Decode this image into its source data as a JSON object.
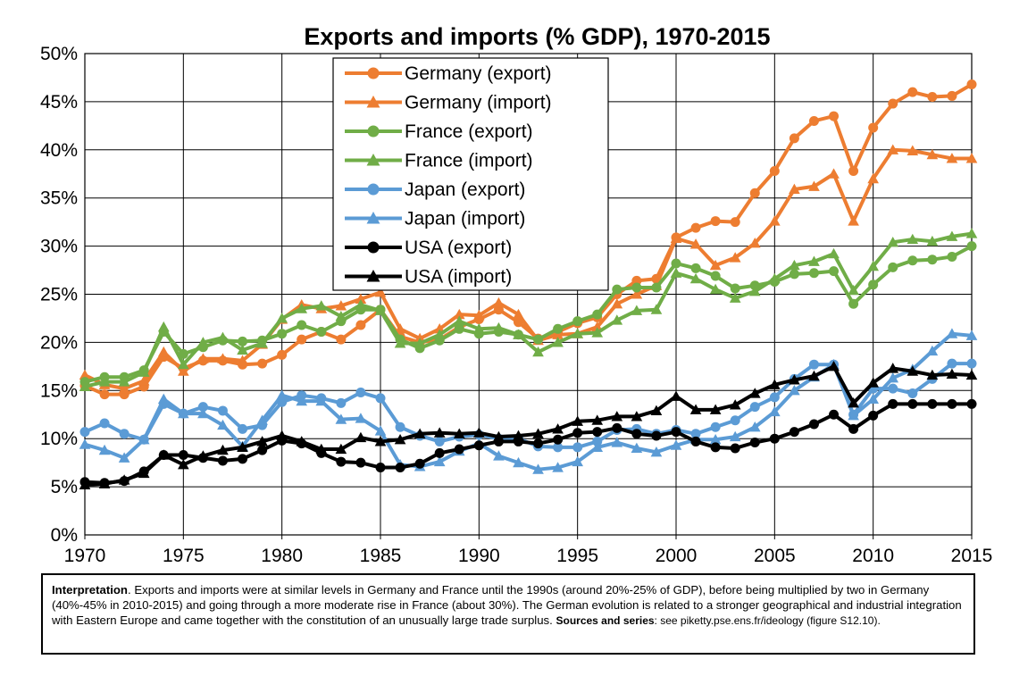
{
  "chart_data": {
    "type": "line",
    "title": "Exports and imports (% GDP), 1970-2015",
    "x_ticks": [
      "1970",
      "1975",
      "1980",
      "1985",
      "1990",
      "1995",
      "2000",
      "2005",
      "2010",
      "2015"
    ],
    "y_ticks": [
      "0%",
      "5%",
      "10%",
      "15%",
      "20%",
      "25%",
      "30%",
      "35%",
      "40%",
      "45%",
      "50%"
    ],
    "xlim": [
      1970,
      2015
    ],
    "ylim": [
      0,
      50
    ],
    "grid": true,
    "legend_position": "top-center",
    "x": [
      1970,
      1971,
      1972,
      1973,
      1974,
      1975,
      1976,
      1977,
      1978,
      1979,
      1980,
      1981,
      1982,
      1983,
      1984,
      1985,
      1986,
      1987,
      1988,
      1989,
      1990,
      1991,
      1992,
      1993,
      1994,
      1995,
      1996,
      1997,
      1998,
      1999,
      2000,
      2001,
      2002,
      2003,
      2004,
      2005,
      2006,
      2007,
      2008,
      2009,
      2010,
      2011,
      2012,
      2013,
      2014,
      2015
    ],
    "series": [
      {
        "name": "Germany (export)",
        "color": "#ED7D31",
        "marker": "circle",
        "values": [
          15.5,
          14.6,
          14.6,
          15.4,
          18.5,
          17.3,
          18.1,
          18.1,
          17.7,
          17.8,
          18.7,
          20.3,
          21.1,
          20.3,
          21.8,
          23.4,
          20.6,
          20.0,
          20.3,
          21.6,
          22.4,
          23.4,
          22.1,
          20.4,
          21.1,
          22.0,
          22.6,
          25.0,
          26.4,
          26.6,
          30.9,
          31.9,
          32.6,
          32.5,
          35.5,
          37.8,
          41.2,
          43.0,
          43.5,
          37.8,
          42.3,
          44.8,
          46.0,
          45.5,
          45.6,
          46.8
        ]
      },
      {
        "name": "Germany (import)",
        "color": "#ED7D31",
        "marker": "triangle",
        "values": [
          16.6,
          15.6,
          15.2,
          16.0,
          19.0,
          17.0,
          18.3,
          18.3,
          18.1,
          19.8,
          22.4,
          23.9,
          23.5,
          23.8,
          24.5,
          25.2,
          21.4,
          20.4,
          21.4,
          22.9,
          22.8,
          24.1,
          22.9,
          20.2,
          20.8,
          20.9,
          21.6,
          24.0,
          25.0,
          25.9,
          30.8,
          30.2,
          28.0,
          28.8,
          30.3,
          32.6,
          35.9,
          36.2,
          37.5,
          32.6,
          37.0,
          40.0,
          39.9,
          39.5,
          39.1,
          39.1
        ]
      },
      {
        "name": "France (export)",
        "color": "#70AD47",
        "marker": "circle",
        "values": [
          15.9,
          16.4,
          16.4,
          17.1,
          21.1,
          18.8,
          19.5,
          20.2,
          20.1,
          20.2,
          20.9,
          21.8,
          21.1,
          22.2,
          23.4,
          23.4,
          20.3,
          19.4,
          20.2,
          21.4,
          20.9,
          21.1,
          20.8,
          20.3,
          21.4,
          22.2,
          22.9,
          25.5,
          25.7,
          25.7,
          28.2,
          27.7,
          26.9,
          25.6,
          25.9,
          26.3,
          27.1,
          27.2,
          27.4,
          24.0,
          26.0,
          27.8,
          28.5,
          28.6,
          28.9,
          30.0
        ]
      },
      {
        "name": "France (import)",
        "color": "#70AD47",
        "marker": "triangle",
        "values": [
          15.4,
          15.9,
          15.9,
          16.9,
          21.6,
          17.7,
          20.0,
          20.5,
          19.2,
          19.9,
          22.5,
          23.5,
          23.8,
          22.7,
          23.9,
          23.3,
          19.9,
          19.9,
          20.8,
          22.2,
          21.4,
          21.5,
          20.8,
          19.0,
          20.0,
          20.9,
          21.0,
          22.3,
          23.3,
          23.4,
          27.2,
          26.6,
          25.5,
          24.6,
          25.3,
          26.6,
          28.0,
          28.4,
          29.2,
          25.4,
          27.9,
          30.4,
          30.7,
          30.5,
          31.0,
          31.3
        ]
      },
      {
        "name": "Japan (export)",
        "color": "#5B9BD5",
        "marker": "circle",
        "values": [
          10.7,
          11.6,
          10.5,
          9.9,
          13.6,
          12.6,
          13.3,
          12.9,
          11.0,
          11.4,
          13.8,
          14.5,
          14.2,
          13.7,
          14.8,
          14.2,
          11.2,
          10.3,
          9.7,
          10.2,
          10.4,
          10.0,
          10.0,
          9.2,
          9.1,
          9.1,
          9.7,
          10.9,
          11.0,
          10.5,
          10.9,
          10.5,
          11.2,
          11.9,
          13.3,
          14.3,
          16.2,
          17.7,
          17.7,
          12.5,
          15.2,
          15.2,
          14.7,
          16.2,
          17.8,
          17.8
        ]
      },
      {
        "name": "Japan (import)",
        "color": "#5B9BD5",
        "marker": "triangle",
        "values": [
          9.4,
          8.8,
          8.0,
          9.9,
          14.1,
          12.6,
          12.6,
          11.4,
          9.2,
          11.9,
          14.5,
          13.9,
          13.9,
          12.0,
          12.1,
          10.8,
          7.3,
          7.1,
          7.6,
          8.7,
          9.5,
          8.2,
          7.5,
          6.8,
          7.0,
          7.6,
          9.1,
          9.6,
          9.0,
          8.6,
          9.3,
          9.9,
          9.9,
          10.2,
          11.2,
          12.8,
          15.0,
          16.4,
          17.7,
          12.4,
          14.1,
          16.3,
          17.2,
          19.1,
          20.9,
          20.7
        ]
      },
      {
        "name": "USA (export)",
        "color": "#000000",
        "marker": "circle",
        "values": [
          5.5,
          5.4,
          5.6,
          6.6,
          8.3,
          8.3,
          8.0,
          7.7,
          7.9,
          8.8,
          9.8,
          9.5,
          8.5,
          7.6,
          7.5,
          7.0,
          7.0,
          7.4,
          8.5,
          8.9,
          9.3,
          9.7,
          9.7,
          9.5,
          9.9,
          10.6,
          10.7,
          11.1,
          10.5,
          10.3,
          10.7,
          9.7,
          9.1,
          9.0,
          9.6,
          10.0,
          10.7,
          11.5,
          12.5,
          11.0,
          12.4,
          13.6,
          13.6,
          13.6,
          13.6,
          13.6
        ]
      },
      {
        "name": "USA (import)",
        "color": "#000000",
        "marker": "triangle",
        "values": [
          5.2,
          5.3,
          5.7,
          6.4,
          8.3,
          7.3,
          8.2,
          8.8,
          9.1,
          9.7,
          10.3,
          9.7,
          8.9,
          8.9,
          10.1,
          9.7,
          9.9,
          10.5,
          10.6,
          10.5,
          10.6,
          10.2,
          10.3,
          10.5,
          11.0,
          11.8,
          11.9,
          12.3,
          12.3,
          12.9,
          14.4,
          13.0,
          13.0,
          13.5,
          14.7,
          15.6,
          16.1,
          16.5,
          17.5,
          13.7,
          15.8,
          17.3,
          17.0,
          16.6,
          16.7,
          16.6
        ]
      }
    ]
  },
  "note": {
    "interp_label": "Interpretation",
    "interp_text": ". Exports and imports were at similar levels in Germany and France until the 1990s (around 20%-25% of GDP), before being multiplied by two in Germany (40%-45% in 2010-2015) and going through a more moderate rise in France (about 30%). The German evolution is related to a stronger geographical and industrial integration with Eastern Europe and came together with the constitution of an unusually large trade surplus.",
    "sources_label": "Sources and series",
    "sources_text": ": see piketty.pse.ens.fr/ideology (figure S12.10)."
  }
}
